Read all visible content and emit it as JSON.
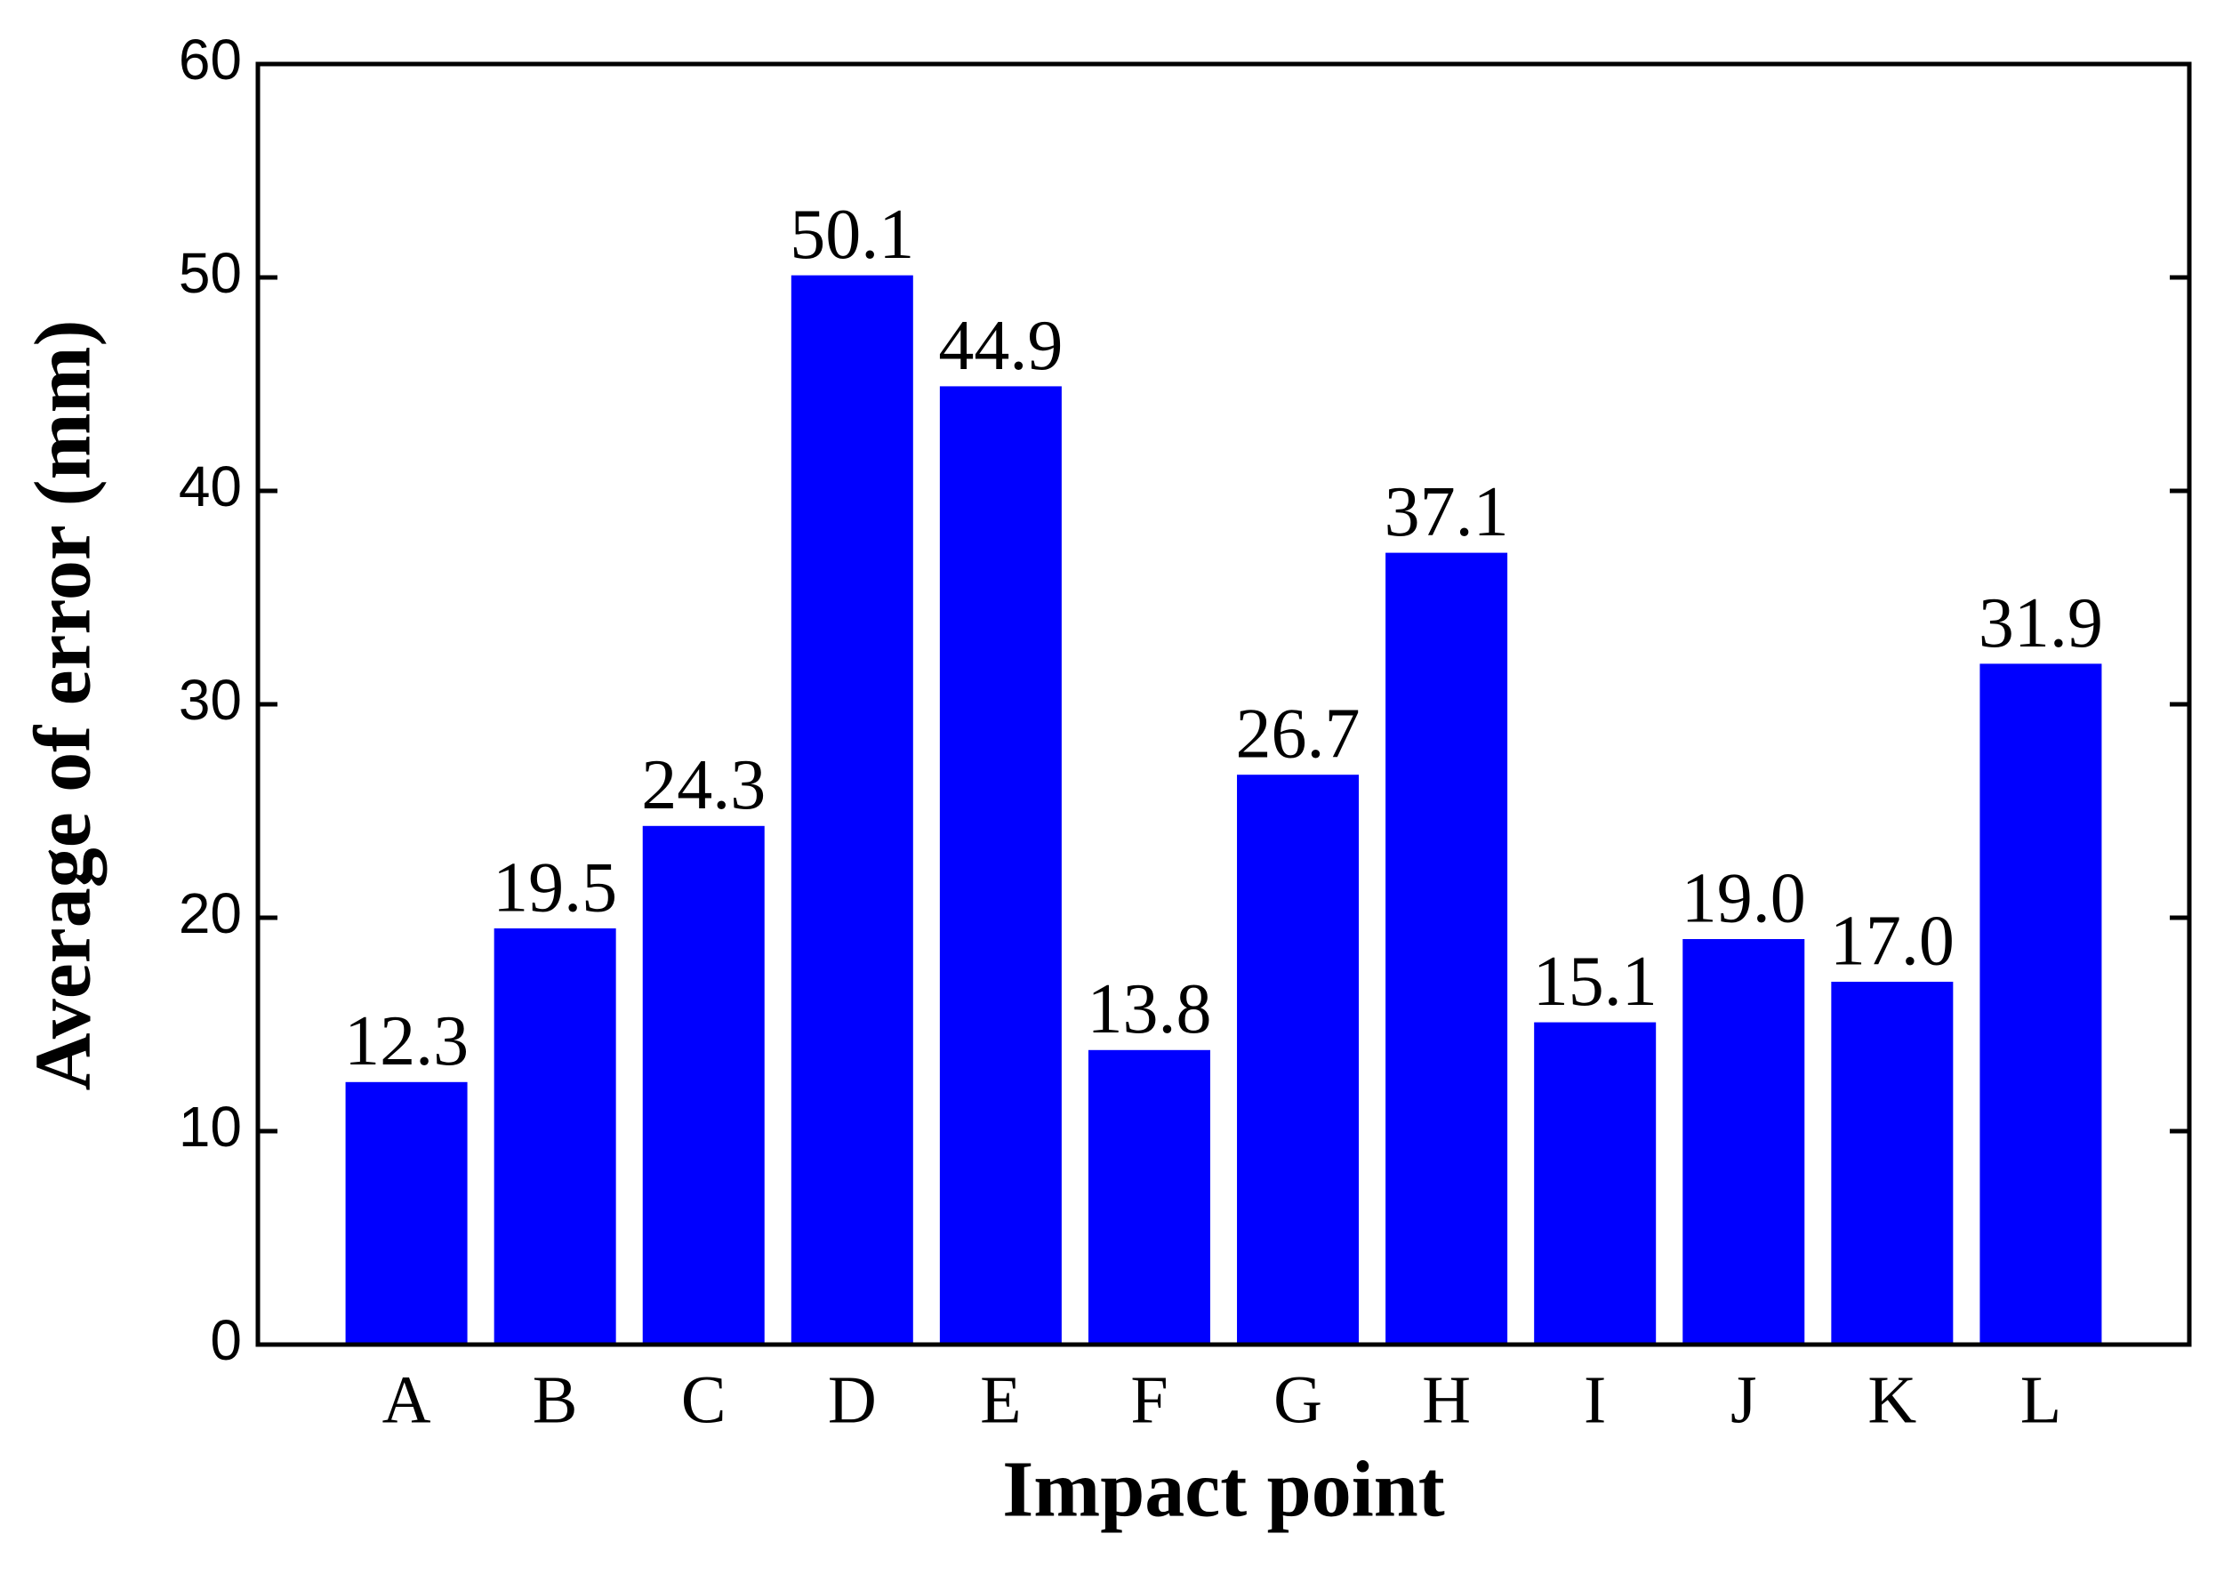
{
  "chart_data": {
    "type": "bar",
    "xlabel": "Impact point",
    "ylabel": "Average of error (mm)",
    "categories": [
      "A",
      "B",
      "C",
      "D",
      "E",
      "F",
      "G",
      "H",
      "I",
      "J",
      "K",
      "L"
    ],
    "values": [
      12.3,
      19.5,
      24.3,
      50.1,
      44.9,
      13.8,
      26.7,
      37.1,
      15.1,
      19,
      17,
      31.9
    ],
    "value_labels": [
      "12.3",
      "19.5",
      "24.3",
      "50.1",
      "44.9",
      "13.8",
      "26.7",
      "37.1",
      "15.1",
      "19.0",
      "17.0",
      "31.9"
    ],
    "color": "#0000ff",
    "ylim": [
      0,
      60
    ],
    "yticks": [
      0,
      10,
      20,
      30,
      40,
      50,
      60
    ],
    "grid": false
  }
}
